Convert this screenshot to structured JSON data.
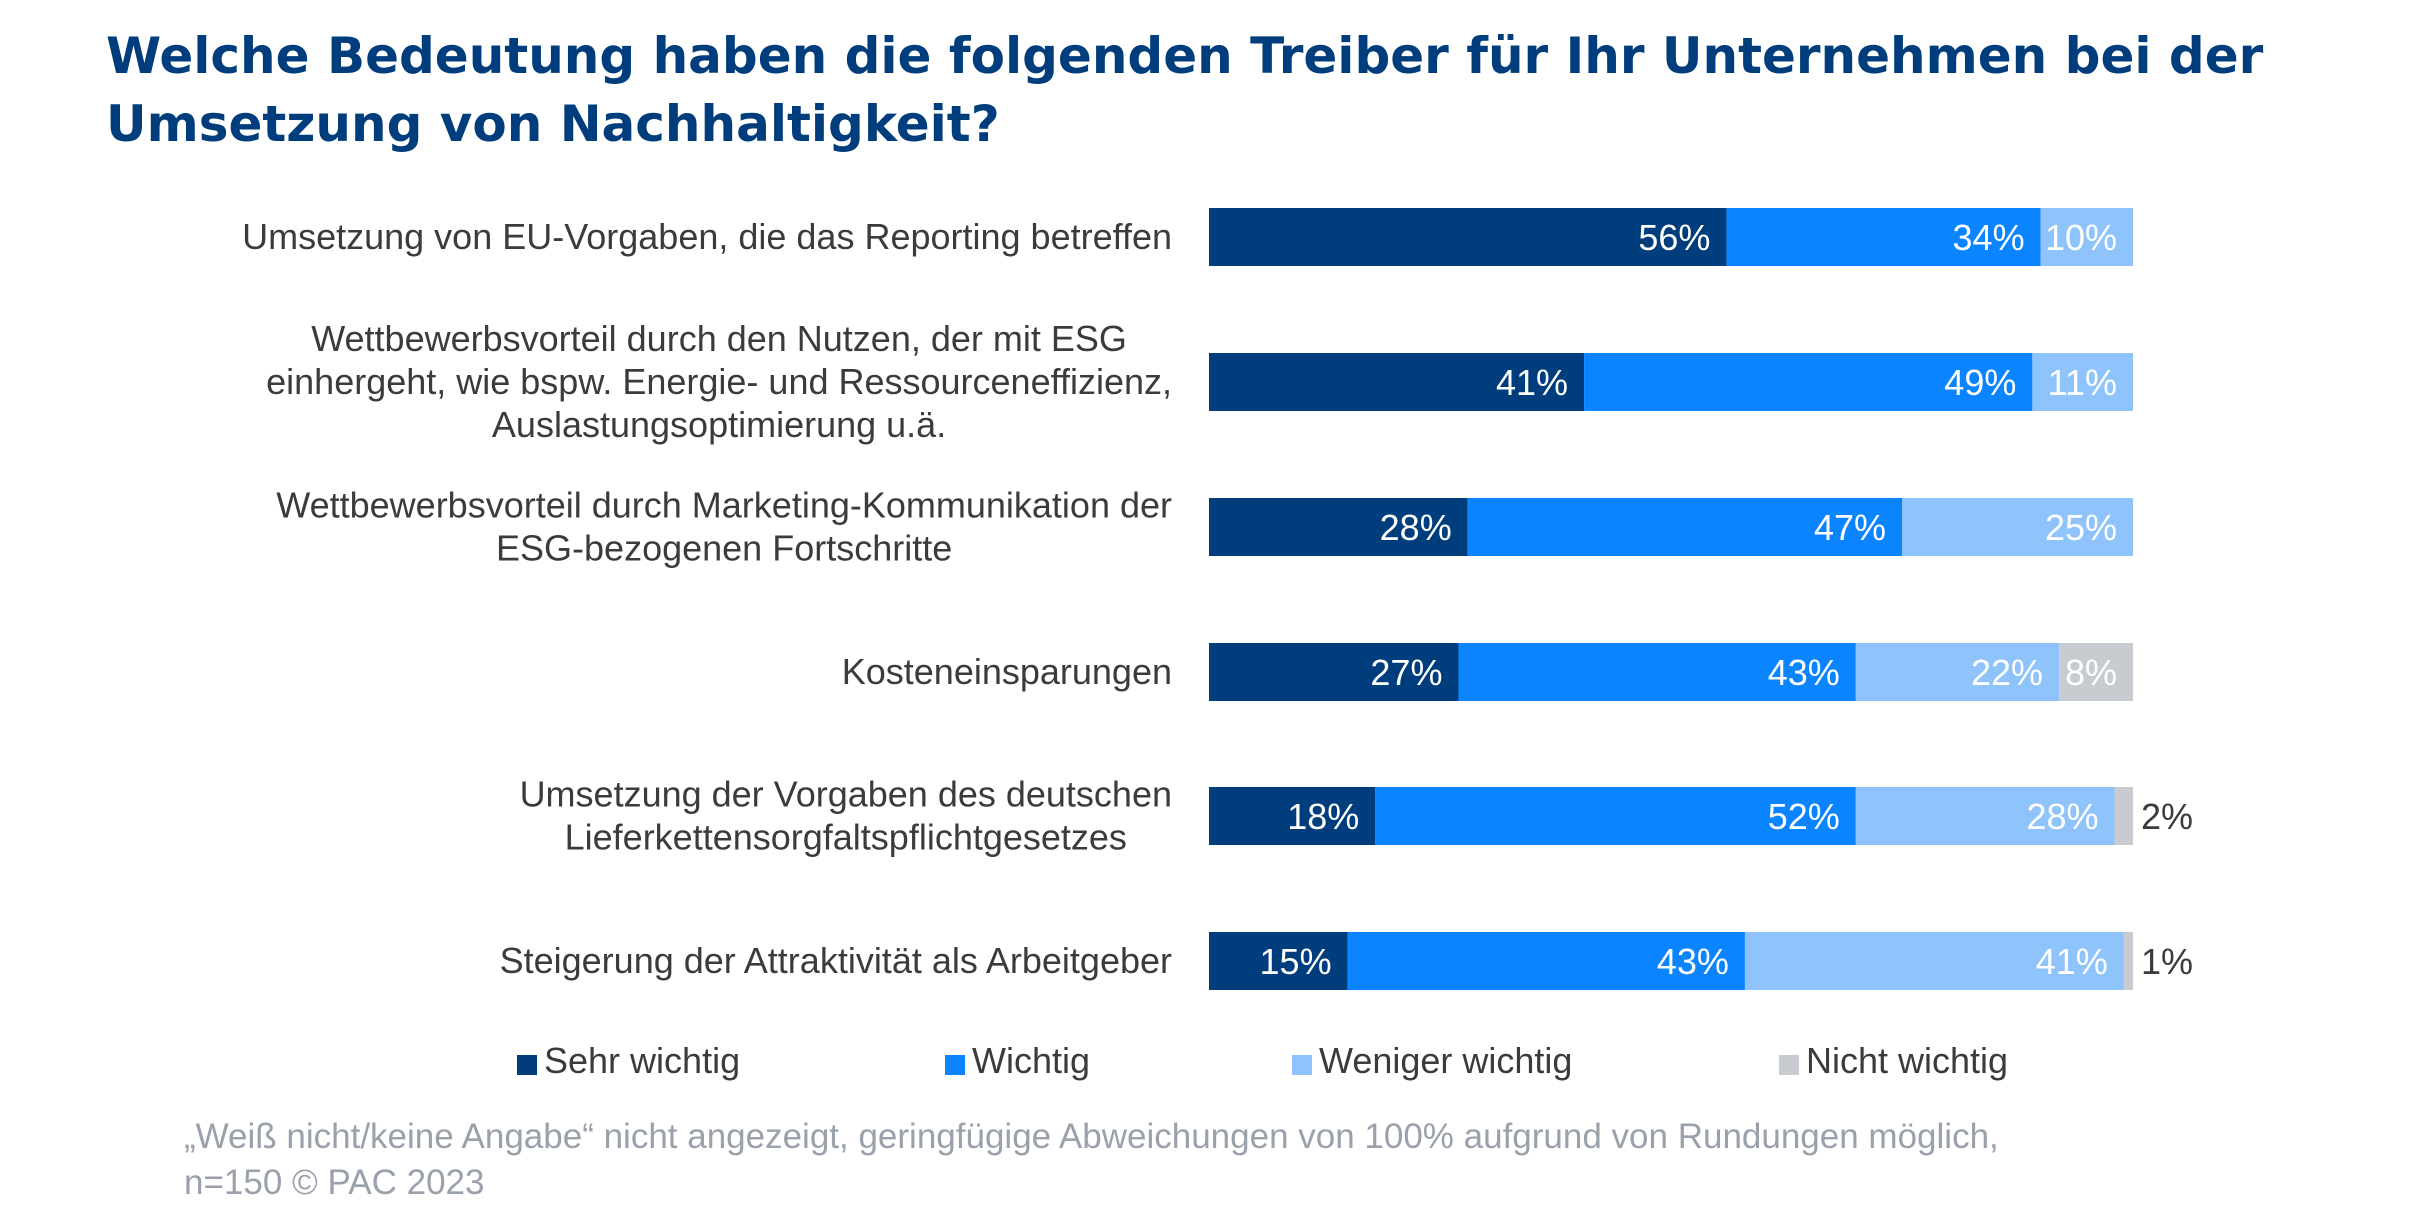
{
  "chart_data": {
    "type": "bar",
    "orientation": "horizontal",
    "stacked": true,
    "title": "Welche Bedeutung haben die folgenden Treiber für Ihr Unternehmen bei der Umsetzung von Nachhaltigkeit?",
    "categories": [
      "Umsetzung von EU-Vorgaben, die das Reporting betreffen",
      "Wettbewerbsvorteil durch den Nutzen, der mit ESG einhergeht, wie bspw. Energie- und Ressourceneffizienz, Auslastungsoptimierung u.ä.",
      "Wettbewerbsvorteil durch Marketing-Kommunikation der ESG-bezogenen Fortschritte",
      "Kosteneinsparungen",
      "Umsetzung der Vorgaben des deutschen Lieferkettensorgfaltspflichtgesetzes",
      "Steigerung der Attraktivität als Arbeitgeber"
    ],
    "category_lines": [
      [
        "Umsetzung von EU-Vorgaben, die das Reporting betreffen"
      ],
      [
        "Wettbewerbsvorteil durch den Nutzen, der mit ESG",
        "einhergeht, wie bspw. Energie- und Ressourceneffizienz,",
        "Auslastungsoptimierung u.ä."
      ],
      [
        "Wettbewerbsvorteil durch Marketing-Kommunikation der",
        "ESG-bezogenen Fortschritte"
      ],
      [
        "Kosteneinsparungen"
      ],
      [
        "Umsetzung der Vorgaben des deutschen",
        "Lieferkettensorgfaltspflichtgesetzes"
      ],
      [
        "Steigerung der Attraktivität als Arbeitgeber"
      ]
    ],
    "series": [
      {
        "name": "Sehr wichtig",
        "color": "#003d7c",
        "values": [
          56,
          41,
          28,
          27,
          18,
          15
        ]
      },
      {
        "name": "Wichtig",
        "color": "#0a84ff",
        "values": [
          34,
          49,
          47,
          43,
          52,
          43
        ]
      },
      {
        "name": "Weniger wichtig",
        "color": "#8fc3fb",
        "values": [
          10,
          11,
          25,
          22,
          28,
          41
        ]
      },
      {
        "name": "Nicht wichtig",
        "color": "#c8ccd1",
        "values": [
          0,
          0,
          0,
          8,
          2,
          1
        ]
      }
    ],
    "unit": "%",
    "legend_position": "bottom",
    "grid": false
  },
  "footnote": "„Weiß nicht/keine Angabe“ nicht angezeigt, geringfügige Abweichungen von 100% aufgrund von Rundungen möglich,\nn=150   © PAC 2023"
}
